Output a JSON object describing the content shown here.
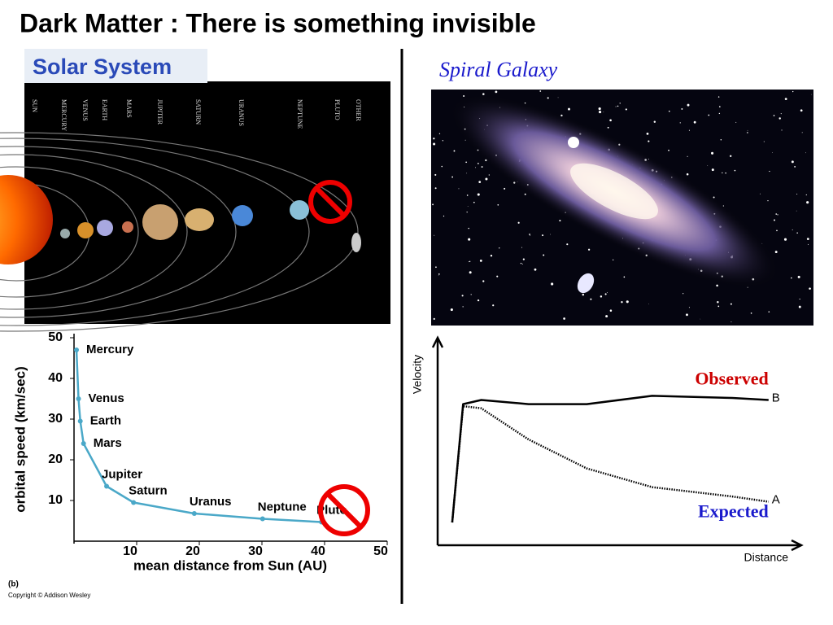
{
  "title": "Dark Matter : There is something invisible",
  "solar_system": {
    "heading": "Solar System",
    "planet_labels": [
      "SUN",
      "MERCURY",
      "VENUS",
      "EARTH",
      "MARS",
      "JUPITER",
      "SATURN",
      "URANUS",
      "NEPTUNE",
      "PLUTO",
      "OTHER"
    ]
  },
  "galaxy": {
    "heading": "Spiral Galaxy"
  },
  "figure_label": "(b)",
  "copyright": "Copyright © Addison Wesley",
  "chart_data": [
    {
      "type": "line",
      "markers": true,
      "color": "#4aa8c8",
      "ylabel": "orbital speed (km/sec)",
      "xlabel": "mean distance from Sun (AU)",
      "x": [
        0.39,
        0.72,
        1,
        1.52,
        5.2,
        9.5,
        19.2,
        30.1,
        39.5
      ],
      "values": [
        47,
        35,
        29.5,
        24,
        13.5,
        9.5,
        6.8,
        5.5,
        4.7
      ],
      "point_labels": [
        "Mercury",
        "Venus",
        "Earth",
        "Mars",
        "Jupiter",
        "Saturn",
        "Uranus",
        "Neptune",
        "Pluto"
      ],
      "xlim": [
        0,
        50
      ],
      "ylim": [
        0,
        51
      ],
      "xticks": [
        10,
        20,
        30,
        40,
        50
      ],
      "yticks": [
        10,
        20,
        30,
        40,
        50
      ]
    },
    {
      "type": "line",
      "markers": false,
      "ylabel": "Velocity",
      "xlabel": "Distance",
      "x": [
        0.4,
        0.7,
        1.2,
        2.5,
        4.1,
        5.9,
        8.1,
        9.1
      ],
      "xlim": [
        0,
        10
      ],
      "ylim": [
        0,
        10
      ],
      "series": [
        {
          "name": "Observed",
          "end_label": "B",
          "color": "#000000",
          "label_color": "#cc0000",
          "dash": "solid",
          "values": [
            1.1,
            6.8,
            7.0,
            6.8,
            6.8,
            7.2,
            7.1,
            7.0
          ]
        },
        {
          "name": "Expected",
          "end_label": "A",
          "color": "#000000",
          "label_color": "#1a1acc",
          "dash": "dotted",
          "values": [
            1.1,
            6.7,
            6.6,
            5.1,
            3.7,
            2.8,
            2.35,
            2.1
          ]
        }
      ]
    }
  ]
}
